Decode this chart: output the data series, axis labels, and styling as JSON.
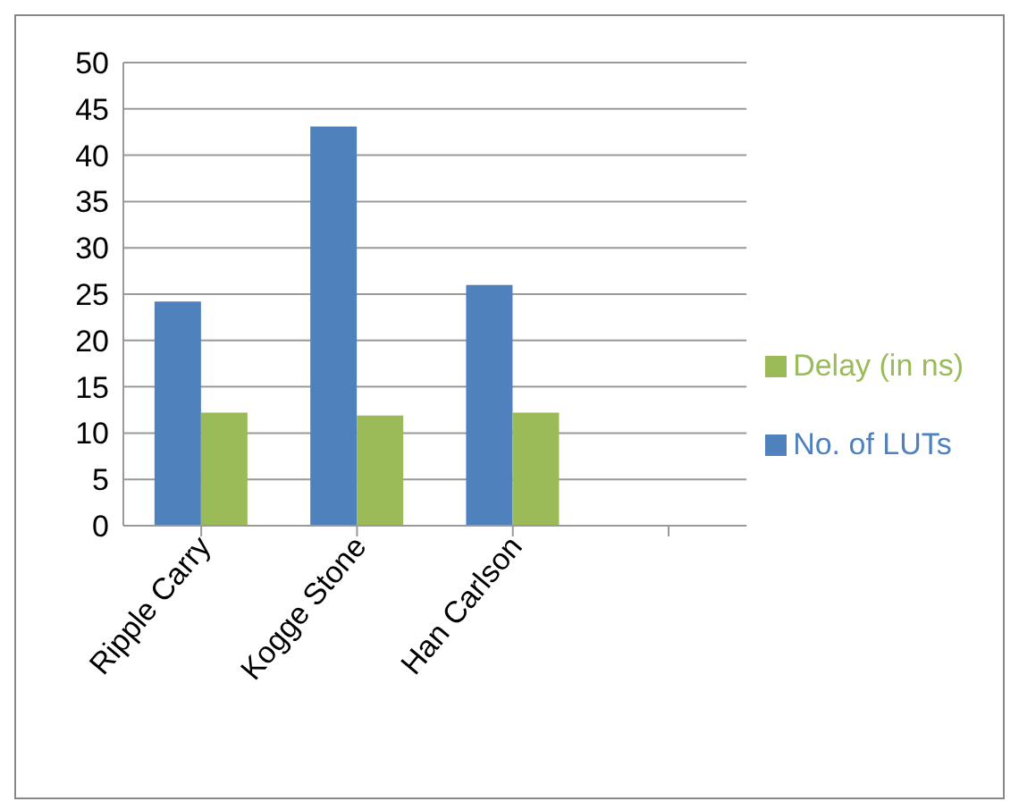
{
  "chart_data": {
    "type": "bar",
    "categories": [
      "Ripple Carry",
      "Kogge Stone",
      "Han Carlson",
      null
    ],
    "series": [
      {
        "name": "No. of LUTs",
        "color": "#4f81bd",
        "values": [
          24.2,
          43.1,
          26.0,
          null
        ]
      },
      {
        "name": "Delay (in ns)",
        "color": "#9bbb59",
        "values": [
          12.2,
          11.9,
          12.2,
          null
        ]
      }
    ],
    "ylim": [
      0,
      50
    ],
    "yticks": [
      0,
      5,
      10,
      15,
      20,
      25,
      30,
      35,
      40,
      45,
      50
    ],
    "grid": "y",
    "legend": "right"
  }
}
